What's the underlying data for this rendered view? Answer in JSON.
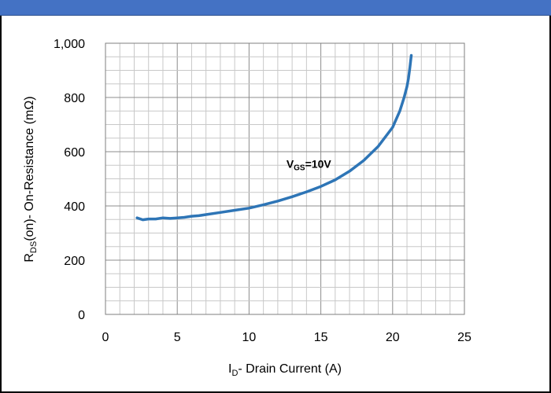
{
  "colors": {
    "header": "#4472C4",
    "series": "#2E75B6",
    "grid": "#BFBFBF",
    "axis": "#7F7F7F"
  },
  "chart_data": {
    "type": "line",
    "title": "",
    "xlabel_main": "I",
    "xlabel_sub": "D",
    "xlabel_rest": "- Drain Current (A)",
    "ylabel_main": "R",
    "ylabel_sub": "DS",
    "ylabel_rest": "(on)- On-Resistance (mΩ)",
    "xlim": [
      0,
      25
    ],
    "ylim": [
      0,
      1000
    ],
    "x_ticks": [
      "0",
      "5",
      "10",
      "15",
      "20",
      "25"
    ],
    "y_ticks": [
      "0",
      "200",
      "400",
      "600",
      "800",
      "1,000"
    ],
    "grid": true,
    "annotation": {
      "main": "V",
      "sub": "GS",
      "rest": "=10V",
      "x": 12.6,
      "y": 540
    },
    "series": [
      {
        "x": [
          2.2,
          2.6,
          3.0,
          3.5,
          4.0,
          4.5,
          5.0,
          5.5,
          6.0,
          6.5,
          7.0,
          8.0,
          9.0,
          10.0,
          11.0,
          12.0,
          13.0,
          14.0,
          15.0,
          16.0,
          17.0,
          18.0,
          19.0,
          20.0,
          20.5,
          20.8,
          21.0,
          21.1,
          21.2,
          21.3
        ],
        "y": [
          356,
          349,
          352,
          352,
          356,
          354,
          356,
          358,
          362,
          364,
          368,
          376,
          384,
          392,
          404,
          418,
          434,
          452,
          472,
          496,
          528,
          568,
          620,
          690,
          750,
          800,
          840,
          870,
          910,
          955
        ]
      }
    ]
  }
}
